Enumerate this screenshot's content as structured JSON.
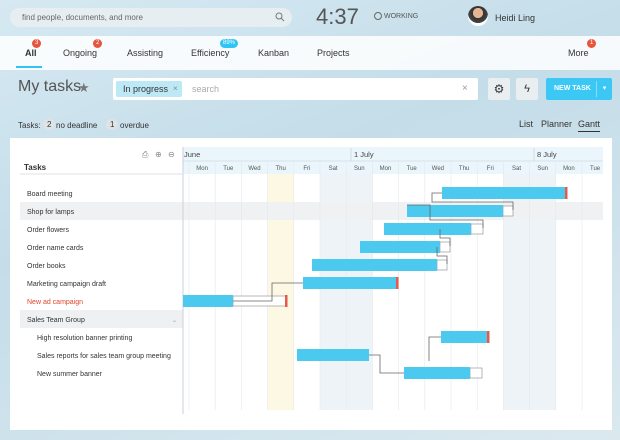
{
  "top_bar": {
    "search_placeholder": "find people, documents, and more",
    "time": "4:37",
    "status": "WORKING",
    "user_name": "Heidi Ling"
  },
  "tabs": [
    {
      "label": "All",
      "badge": "3"
    },
    {
      "label": "Ongoing",
      "badge": "2"
    },
    {
      "label": "Assisting"
    },
    {
      "label": "Efficiency",
      "badge": "89%"
    },
    {
      "label": "Kanban"
    },
    {
      "label": "Projects"
    },
    {
      "label": "More",
      "badge": "1"
    }
  ],
  "page_title": "My tasks",
  "filter": {
    "chip": "In progress",
    "search_placeholder": "search"
  },
  "new_task_button": "NEW TASK",
  "counters": {
    "label": "Tasks:",
    "items": [
      {
        "count": "2",
        "label": "no deadline"
      },
      {
        "count": "1",
        "label": "overdue"
      }
    ]
  },
  "views": [
    "List",
    "Planner",
    "Gantt"
  ],
  "gantt": {
    "list_header": "Tasks",
    "months": [
      "June",
      "1 July",
      "8 July"
    ],
    "days": [
      "Mon",
      "Tue",
      "Wed",
      "Thu",
      "Fri",
      "Sat",
      "Sun",
      "Mon",
      "Tue",
      "Wed",
      "Thu",
      "Fri",
      "Sat",
      "Sun",
      "Mon",
      "Tue"
    ],
    "tasks": [
      "Board meeting",
      "Shop for lamps",
      "Order flowers",
      "Order name cards",
      "Order books",
      "Marketing campaign draft",
      "New ad campaign",
      "Sales Team Group",
      "High resolution banner printing",
      "Sales reports for sales team group meeting",
      "New summer banner"
    ]
  }
}
